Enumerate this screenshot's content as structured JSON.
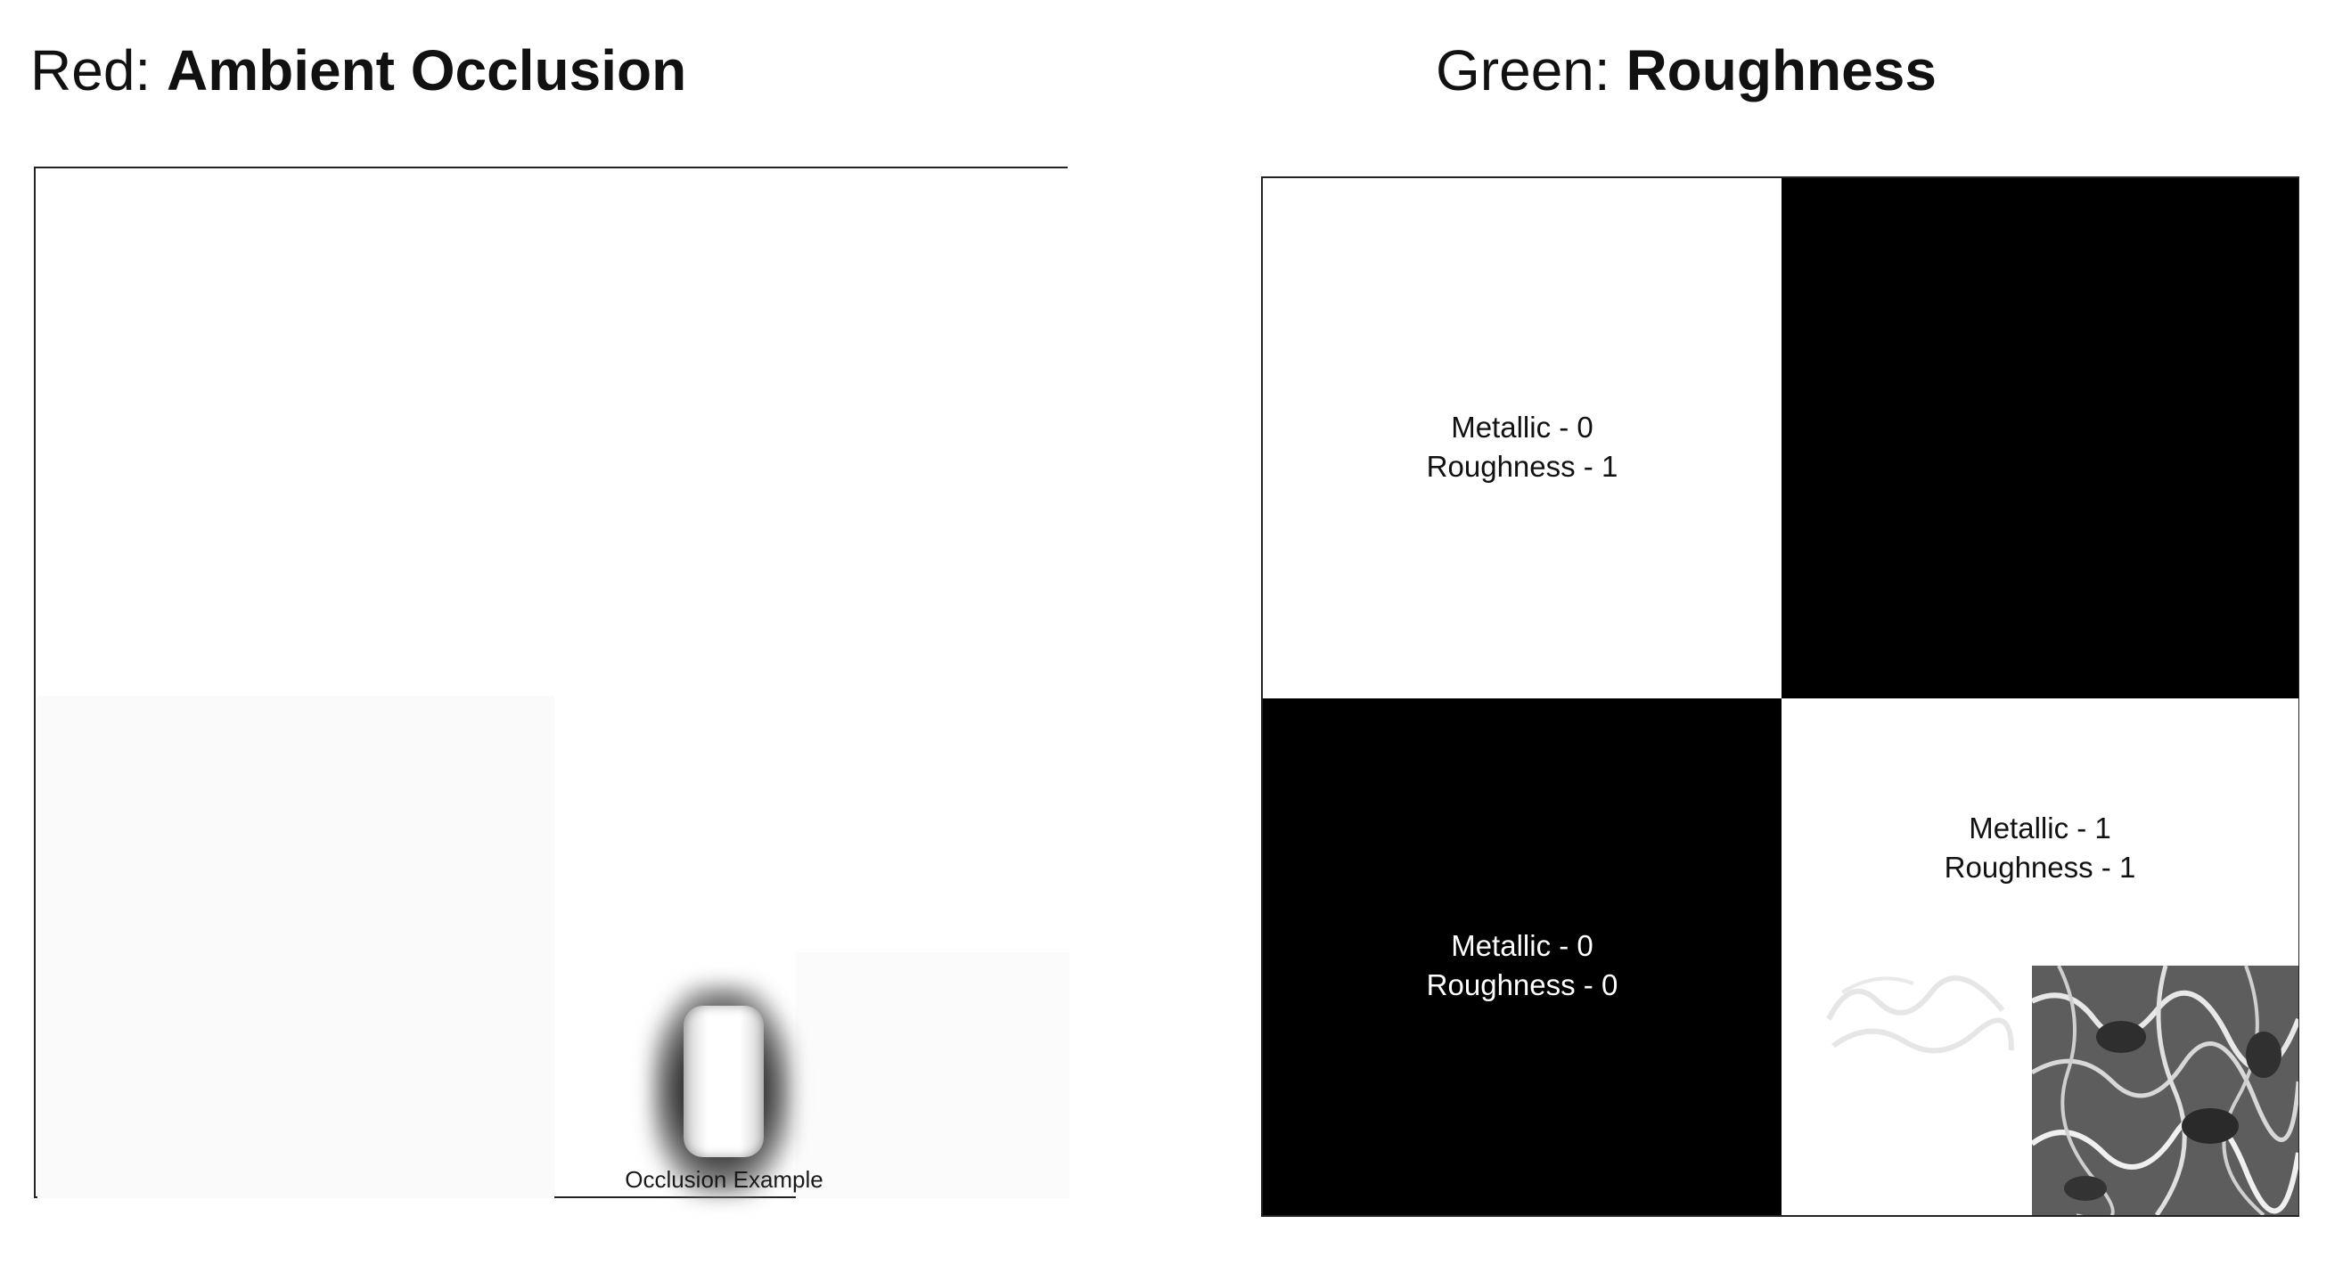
{
  "left_panel": {
    "heading_prefix": "Red:",
    "heading_name": "Ambient Occlusion",
    "caption": "Occlusion Example"
  },
  "right_panel": {
    "heading_prefix": "Green:",
    "heading_name": "Roughness",
    "quadrants": {
      "top_left": {
        "line1": "Metallic - 0",
        "line2": "Roughness - 1",
        "color": "#ffffff"
      },
      "top_right": {
        "color": "#000000"
      },
      "bottom_left": {
        "line1": "Metallic - 0",
        "line2": "Roughness - 0",
        "color": "#000000"
      },
      "bottom_right": {
        "line1": "Metallic - 1",
        "line2": "Roughness - 1",
        "color": "#ffffff"
      }
    }
  }
}
